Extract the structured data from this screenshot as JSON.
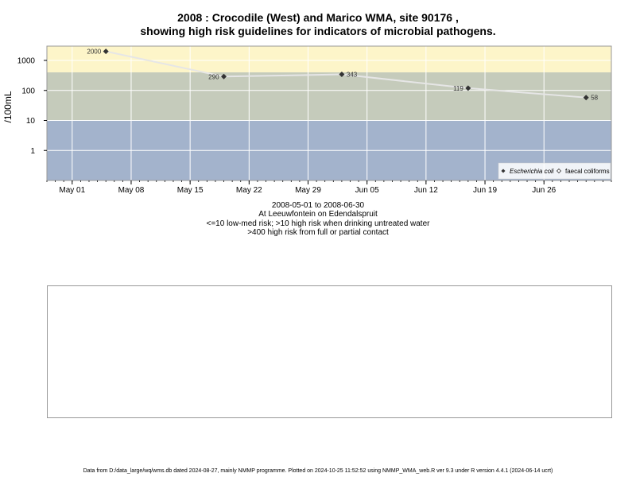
{
  "title": {
    "line1": "2008 : Crocodile (West) and Marico WMA, site 90176 ,",
    "line2": "showing high risk guidelines for indicators of microbial pathogens."
  },
  "captions": {
    "date_range": "2008-05-01 to 2008-06-30",
    "location": "At Leeuwfontein on Edendalspruit",
    "risk_low": "<=10 low-med risk; >10 high risk when drinking untreated water",
    "risk_high": ">400 high risk from full or partial contact"
  },
  "footer": "Data from D:/data_large/wq/wms.db dated 2024-08-27, mainly NMMP programme. Plotted on 2024-10-25 11:52:52 using NMMP_WMA_web.R ver 9.3 under R version 4.4.1 (2024-06-14 ucrt)",
  "colors": {
    "band_high": "#fdf5c9",
    "band_mid": "#c5cbbb",
    "band_low": "#a3b3cc",
    "grid": "#ffffff",
    "series_line": "#e6e6e6",
    "point": "#333333"
  },
  "chart_data": {
    "type": "scatter",
    "yscale": "log",
    "ylabel": "/100mL",
    "xlabel": "",
    "xlim": [
      "2008-04-28",
      "2008-07-04"
    ],
    "ylim": [
      0.1,
      3000
    ],
    "x_ticks": [
      "2008-05-01",
      "2008-05-08",
      "2008-05-15",
      "2008-05-22",
      "2008-05-29",
      "2008-06-05",
      "2008-06-12",
      "2008-06-19",
      "2008-06-26"
    ],
    "x_tick_labels": [
      "May 01",
      "May 08",
      "May 15",
      "May 22",
      "May 29",
      "Jun 05",
      "Jun 12",
      "Jun 19",
      "Jun 26"
    ],
    "y_ticks": [
      1,
      10,
      100,
      1000
    ],
    "y_tick_labels": [
      "1",
      "10",
      "100",
      "1000"
    ],
    "bands": [
      {
        "from": 400,
        "to": 3000,
        "color_key": "band_high"
      },
      {
        "from": 10,
        "to": 400,
        "color_key": "band_mid"
      },
      {
        "from": 0.1,
        "to": 10,
        "color_key": "band_low"
      }
    ],
    "series": [
      {
        "name": "Escherichia coli",
        "points": [
          {
            "x": "2008-05-05",
            "y": 2000,
            "label": "2000"
          },
          {
            "x": "2008-05-19",
            "y": 290,
            "label": "290"
          },
          {
            "x": "2008-06-02",
            "y": 343,
            "label": "343"
          },
          {
            "x": "2008-06-17",
            "y": 119,
            "label": "119"
          },
          {
            "x": "2008-07-01",
            "y": 58,
            "label": "58"
          }
        ]
      }
    ],
    "legend": {
      "placement": "bottom-right",
      "entries": [
        "Escherichia coli",
        "faecal coliforms"
      ]
    }
  }
}
